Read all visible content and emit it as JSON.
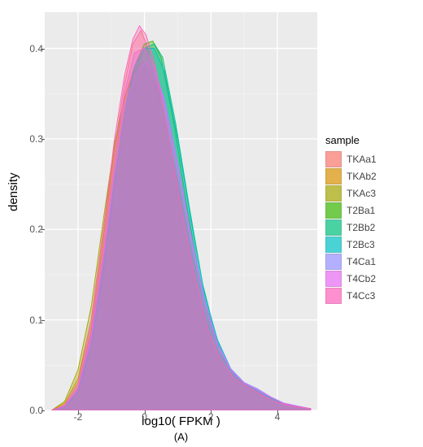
{
  "chart": {
    "type": "density",
    "xlabel": "log10( FPKM )",
    "ylabel": "density",
    "caption": "(A)",
    "legend_title": "sample",
    "panel_bg": "#ebebeb",
    "grid_major_color": "#ffffff",
    "grid_minor_color": "#f5f5f5",
    "axis_text_color": "#555555",
    "label_fontsize": 15,
    "tick_fontsize": 12,
    "xlim": [
      -3,
      5.2
    ],
    "ylim": [
      0,
      0.44
    ],
    "xticks": [
      -2,
      0,
      2,
      4
    ],
    "yticks": [
      0.0,
      0.1,
      0.2,
      0.3,
      0.4
    ],
    "fill_opacity": 0.35,
    "series": [
      {
        "name": "TKAa1",
        "color": "#f8766d",
        "points": [
          [
            -2.8,
            0
          ],
          [
            -2.4,
            0.005
          ],
          [
            -2.0,
            0.025
          ],
          [
            -1.6,
            0.09
          ],
          [
            -1.2,
            0.2
          ],
          [
            -0.9,
            0.29
          ],
          [
            -0.6,
            0.36
          ],
          [
            -0.35,
            0.405
          ],
          [
            -0.1,
            0.42
          ],
          [
            0.1,
            0.4
          ],
          [
            0.4,
            0.355
          ],
          [
            0.8,
            0.28
          ],
          [
            1.2,
            0.195
          ],
          [
            1.6,
            0.125
          ],
          [
            2.0,
            0.075
          ],
          [
            2.4,
            0.045
          ],
          [
            2.8,
            0.03
          ],
          [
            3.2,
            0.022
          ],
          [
            3.6,
            0.014
          ],
          [
            4.0,
            0.008
          ],
          [
            4.5,
            0.004
          ],
          [
            5.0,
            0.002
          ]
        ]
      },
      {
        "name": "TKAb2",
        "color": "#d89000",
        "points": [
          [
            -2.8,
            0
          ],
          [
            -2.4,
            0.008
          ],
          [
            -2.0,
            0.035
          ],
          [
            -1.6,
            0.1
          ],
          [
            -1.2,
            0.21
          ],
          [
            -0.9,
            0.29
          ],
          [
            -0.6,
            0.345
          ],
          [
            -0.3,
            0.38
          ],
          [
            0.0,
            0.385
          ],
          [
            0.25,
            0.375
          ],
          [
            0.5,
            0.345
          ],
          [
            0.9,
            0.27
          ],
          [
            1.3,
            0.19
          ],
          [
            1.7,
            0.12
          ],
          [
            2.1,
            0.072
          ],
          [
            2.5,
            0.044
          ],
          [
            2.9,
            0.03
          ],
          [
            3.3,
            0.022
          ],
          [
            3.7,
            0.014
          ],
          [
            4.1,
            0.008
          ],
          [
            4.6,
            0.004
          ],
          [
            5.0,
            0.002
          ]
        ]
      },
      {
        "name": "TKAc3",
        "color": "#a3a500",
        "points": [
          [
            -2.8,
            0
          ],
          [
            -2.4,
            0.01
          ],
          [
            -2.0,
            0.045
          ],
          [
            -1.6,
            0.115
          ],
          [
            -1.2,
            0.22
          ],
          [
            -0.9,
            0.295
          ],
          [
            -0.6,
            0.345
          ],
          [
            -0.3,
            0.375
          ],
          [
            0.0,
            0.38
          ],
          [
            0.3,
            0.36
          ],
          [
            0.6,
            0.325
          ],
          [
            1.0,
            0.255
          ],
          [
            1.4,
            0.18
          ],
          [
            1.8,
            0.115
          ],
          [
            2.2,
            0.068
          ],
          [
            2.6,
            0.042
          ],
          [
            3.0,
            0.029
          ],
          [
            3.4,
            0.021
          ],
          [
            3.8,
            0.013
          ],
          [
            4.2,
            0.007
          ],
          [
            4.7,
            0.003
          ],
          [
            5.0,
            0.002
          ]
        ]
      },
      {
        "name": "T2Ba1",
        "color": "#39b600",
        "points": [
          [
            -2.8,
            0
          ],
          [
            -2.4,
            0.004
          ],
          [
            -2.0,
            0.02
          ],
          [
            -1.6,
            0.075
          ],
          [
            -1.2,
            0.17
          ],
          [
            -0.9,
            0.26
          ],
          [
            -0.6,
            0.33
          ],
          [
            -0.3,
            0.38
          ],
          [
            0.0,
            0.405
          ],
          [
            0.25,
            0.408
          ],
          [
            0.5,
            0.39
          ],
          [
            0.9,
            0.315
          ],
          [
            1.3,
            0.22
          ],
          [
            1.7,
            0.14
          ],
          [
            2.1,
            0.082
          ],
          [
            2.5,
            0.048
          ],
          [
            2.9,
            0.031
          ],
          [
            3.3,
            0.023
          ],
          [
            3.7,
            0.014
          ],
          [
            4.1,
            0.008
          ],
          [
            4.6,
            0.004
          ],
          [
            5.0,
            0.002
          ]
        ]
      },
      {
        "name": "T2Bb2",
        "color": "#00bf7d",
        "points": [
          [
            -2.8,
            0
          ],
          [
            -2.4,
            0.004
          ],
          [
            -2.0,
            0.02
          ],
          [
            -1.6,
            0.07
          ],
          [
            -1.2,
            0.16
          ],
          [
            -0.9,
            0.25
          ],
          [
            -0.6,
            0.325
          ],
          [
            -0.3,
            0.375
          ],
          [
            0.0,
            0.4
          ],
          [
            0.3,
            0.405
          ],
          [
            0.55,
            0.39
          ],
          [
            0.95,
            0.315
          ],
          [
            1.35,
            0.225
          ],
          [
            1.75,
            0.14
          ],
          [
            2.15,
            0.082
          ],
          [
            2.55,
            0.048
          ],
          [
            2.95,
            0.031
          ],
          [
            3.35,
            0.023
          ],
          [
            3.75,
            0.014
          ],
          [
            4.15,
            0.008
          ],
          [
            4.6,
            0.004
          ],
          [
            5.0,
            0.002
          ]
        ]
      },
      {
        "name": "T2Bc3",
        "color": "#00bfc4",
        "points": [
          [
            -2.8,
            0
          ],
          [
            -2.4,
            0.004
          ],
          [
            -2.0,
            0.022
          ],
          [
            -1.6,
            0.075
          ],
          [
            -1.2,
            0.165
          ],
          [
            -0.9,
            0.255
          ],
          [
            -0.6,
            0.33
          ],
          [
            -0.3,
            0.38
          ],
          [
            0.0,
            0.4
          ],
          [
            0.3,
            0.4
          ],
          [
            0.6,
            0.375
          ],
          [
            1.0,
            0.3
          ],
          [
            1.4,
            0.21
          ],
          [
            1.8,
            0.13
          ],
          [
            2.2,
            0.078
          ],
          [
            2.6,
            0.046
          ],
          [
            3.0,
            0.03
          ],
          [
            3.4,
            0.022
          ],
          [
            3.8,
            0.014
          ],
          [
            4.2,
            0.008
          ],
          [
            4.7,
            0.004
          ],
          [
            5.0,
            0.002
          ]
        ]
      },
      {
        "name": "T4Ca1",
        "color": "#9590ff",
        "points": [
          [
            -2.8,
            0
          ],
          [
            -2.4,
            0.005
          ],
          [
            -2.0,
            0.025
          ],
          [
            -1.6,
            0.08
          ],
          [
            -1.2,
            0.175
          ],
          [
            -0.9,
            0.26
          ],
          [
            -0.6,
            0.33
          ],
          [
            -0.3,
            0.37
          ],
          [
            0.0,
            0.385
          ],
          [
            0.3,
            0.375
          ],
          [
            0.6,
            0.345
          ],
          [
            1.0,
            0.275
          ],
          [
            1.4,
            0.195
          ],
          [
            1.8,
            0.125
          ],
          [
            2.2,
            0.075
          ],
          [
            2.6,
            0.046
          ],
          [
            3.0,
            0.031
          ],
          [
            3.4,
            0.024
          ],
          [
            3.8,
            0.015
          ],
          [
            4.2,
            0.008
          ],
          [
            4.7,
            0.004
          ],
          [
            5.0,
            0.002
          ]
        ]
      },
      {
        "name": "T4Cb2",
        "color": "#e76bf3",
        "points": [
          [
            -2.8,
            0
          ],
          [
            -2.4,
            0.005
          ],
          [
            -2.0,
            0.025
          ],
          [
            -1.6,
            0.085
          ],
          [
            -1.2,
            0.185
          ],
          [
            -0.9,
            0.275
          ],
          [
            -0.6,
            0.35
          ],
          [
            -0.3,
            0.395
          ],
          [
            0.0,
            0.4
          ],
          [
            0.3,
            0.38
          ],
          [
            0.6,
            0.34
          ],
          [
            1.0,
            0.27
          ],
          [
            1.4,
            0.19
          ],
          [
            1.8,
            0.12
          ],
          [
            2.2,
            0.072
          ],
          [
            2.6,
            0.044
          ],
          [
            3.0,
            0.03
          ],
          [
            3.4,
            0.023
          ],
          [
            3.8,
            0.015
          ],
          [
            4.2,
            0.008
          ],
          [
            4.7,
            0.004
          ],
          [
            5.0,
            0.002
          ]
        ]
      },
      {
        "name": "T4Cc3",
        "color": "#ff62bc",
        "points": [
          [
            -2.8,
            0
          ],
          [
            -2.4,
            0.006
          ],
          [
            -2.0,
            0.03
          ],
          [
            -1.6,
            0.1
          ],
          [
            -1.2,
            0.21
          ],
          [
            -0.9,
            0.3
          ],
          [
            -0.6,
            0.37
          ],
          [
            -0.35,
            0.41
          ],
          [
            -0.15,
            0.425
          ],
          [
            0.05,
            0.415
          ],
          [
            0.3,
            0.385
          ],
          [
            0.7,
            0.31
          ],
          [
            1.1,
            0.225
          ],
          [
            1.5,
            0.15
          ],
          [
            1.9,
            0.09
          ],
          [
            2.3,
            0.055
          ],
          [
            2.7,
            0.035
          ],
          [
            3.1,
            0.026
          ],
          [
            3.5,
            0.018
          ],
          [
            3.9,
            0.01
          ],
          [
            4.4,
            0.005
          ],
          [
            5.0,
            0.002
          ]
        ]
      }
    ]
  }
}
